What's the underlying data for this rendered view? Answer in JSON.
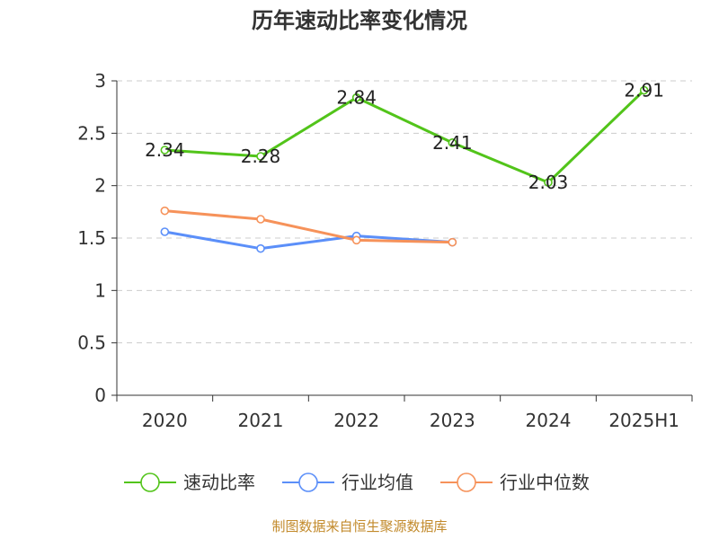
{
  "chart_data": {
    "type": "line",
    "title": "历年速动比率变化情况",
    "categories": [
      "2020",
      "2021",
      "2022",
      "2023",
      "2024",
      "2025H1"
    ],
    "ylim": [
      0,
      3
    ],
    "yticks": [
      "0",
      "0.5",
      "1",
      "1.5",
      "2",
      "2.5",
      "3"
    ],
    "ytick_values": [
      0,
      0.5,
      1,
      1.5,
      2,
      2.5,
      3
    ],
    "grid": true,
    "legend_position": "bottom",
    "series": [
      {
        "name": "速动比率",
        "color": "#52c41a",
        "values": [
          2.34,
          2.28,
          2.84,
          2.41,
          2.03,
          2.91
        ],
        "labels": [
          "2.34",
          "2.28",
          "2.84",
          "2.41",
          "2.03",
          "2.91"
        ],
        "show_labels": true
      },
      {
        "name": "行业均值",
        "color": "#5b8ff9",
        "values": [
          1.56,
          1.4,
          1.52,
          1.46,
          null,
          null
        ],
        "show_labels": false
      },
      {
        "name": "行业中位数",
        "color": "#f6925a",
        "values": [
          1.76,
          1.68,
          1.48,
          1.46,
          null,
          null
        ],
        "show_labels": false
      }
    ]
  },
  "source_text": "制图数据来自恒生聚源数据库"
}
